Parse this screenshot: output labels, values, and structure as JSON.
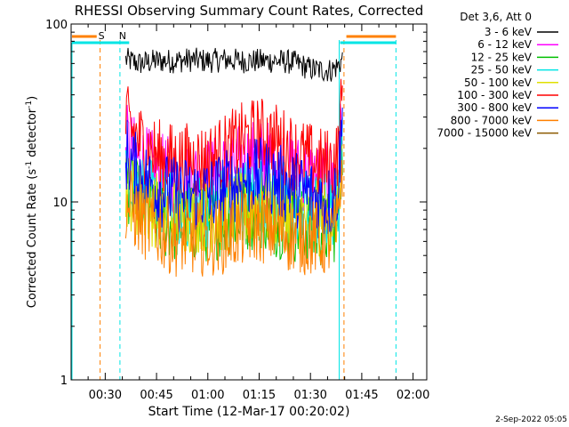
{
  "chart_data": {
    "type": "line",
    "title": "RHESSI Observing Summary Count Rates, Corrected",
    "xlabel": "Start Time (12-Mar-17 00:20:02)",
    "ylabel": "Corrected Count Rate (s⁻¹ detector⁻¹)",
    "ylabel_main": "Corrected Count Rate (s",
    "ylabel_sup1": "-1",
    "ylabel_mid": " detector",
    "ylabel_sup2": "-1",
    "ylabel_end": ")",
    "x_ticks": [
      "00:30",
      "00:45",
      "01:00",
      "01:15",
      "01:30",
      "01:45",
      "02:00"
    ],
    "x_tick_minutes": [
      30,
      45,
      60,
      75,
      90,
      105,
      120
    ],
    "xlim_minutes": [
      20.03,
      124
    ],
    "y_scale": "log",
    "ylim": [
      1,
      100
    ],
    "y_ticks": [
      "1",
      "10",
      "100"
    ],
    "y_tick_values": [
      1,
      10,
      100
    ],
    "legend_position": "top-right",
    "legend_title": "Det 3,6, Att 0",
    "series": [
      {
        "name": "3 - 6 keV",
        "color": "#000000",
        "points": [
          [
            36,
            63
          ],
          [
            40,
            60
          ],
          [
            45,
            62
          ],
          [
            50,
            62
          ],
          [
            55,
            63
          ],
          [
            60,
            62
          ],
          [
            65,
            63
          ],
          [
            70,
            62
          ],
          [
            75,
            62
          ],
          [
            80,
            62
          ],
          [
            85,
            61
          ],
          [
            90,
            56
          ],
          [
            93,
            55
          ],
          [
            96,
            55
          ],
          [
            98,
            58
          ],
          [
            99.5,
            64
          ]
        ]
      },
      {
        "name": "6 - 12 keV",
        "color": "#ff00ff",
        "points": [
          [
            36,
            22
          ],
          [
            38,
            19
          ],
          [
            40,
            17
          ],
          [
            45,
            15
          ],
          [
            50,
            14
          ],
          [
            55,
            14
          ],
          [
            60,
            14
          ],
          [
            65,
            15
          ],
          [
            70,
            17
          ],
          [
            75,
            18
          ],
          [
            80,
            17
          ],
          [
            85,
            15
          ],
          [
            90,
            14
          ],
          [
            93,
            13
          ],
          [
            96,
            13
          ],
          [
            98,
            15
          ],
          [
            99.5,
            32
          ]
        ]
      },
      {
        "name": "12 - 25 keV",
        "color": "#00c000",
        "points": [
          [
            36,
            13
          ],
          [
            40,
            10
          ],
          [
            45,
            8
          ],
          [
            50,
            7.5
          ],
          [
            55,
            7.5
          ],
          [
            60,
            7.5
          ],
          [
            65,
            8
          ],
          [
            70,
            8.5
          ],
          [
            75,
            9
          ],
          [
            80,
            8
          ],
          [
            85,
            7.5
          ],
          [
            90,
            7
          ],
          [
            93,
            7
          ],
          [
            96,
            7
          ],
          [
            98,
            8
          ],
          [
            99.5,
            22
          ]
        ]
      },
      {
        "name": "25 - 50 keV",
        "color": "#00e5e5",
        "points": [
          [
            36,
            15
          ],
          [
            40,
            12
          ],
          [
            45,
            10
          ],
          [
            50,
            9
          ],
          [
            55,
            9
          ],
          [
            60,
            9
          ],
          [
            65,
            10
          ],
          [
            70,
            11
          ],
          [
            75,
            11
          ],
          [
            80,
            11
          ],
          [
            85,
            10
          ],
          [
            90,
            9
          ],
          [
            93,
            9
          ],
          [
            96,
            9
          ],
          [
            98,
            10
          ],
          [
            99.5,
            24
          ]
        ]
      },
      {
        "name": "50 - 100 keV",
        "color": "#e0e000",
        "points": [
          [
            36,
            12
          ],
          [
            40,
            10
          ],
          [
            45,
            9
          ],
          [
            50,
            8.5
          ],
          [
            55,
            8.5
          ],
          [
            60,
            8.5
          ],
          [
            65,
            8.5
          ],
          [
            70,
            9
          ],
          [
            75,
            9.5
          ],
          [
            80,
            9
          ],
          [
            85,
            8.5
          ],
          [
            90,
            8
          ],
          [
            93,
            8
          ],
          [
            96,
            8
          ],
          [
            98,
            9
          ],
          [
            99.5,
            20
          ]
        ]
      },
      {
        "name": "100 - 300 keV",
        "color": "#ff0000",
        "points": [
          [
            36,
            28
          ],
          [
            38,
            25
          ],
          [
            40,
            22
          ],
          [
            45,
            18
          ],
          [
            50,
            17
          ],
          [
            55,
            17
          ],
          [
            60,
            17
          ],
          [
            65,
            19
          ],
          [
            70,
            22
          ],
          [
            75,
            24
          ],
          [
            80,
            22
          ],
          [
            85,
            19
          ],
          [
            90,
            17
          ],
          [
            93,
            16
          ],
          [
            96,
            16
          ],
          [
            98,
            18
          ],
          [
            99.5,
            40
          ]
        ]
      },
      {
        "name": "300 - 800 keV",
        "color": "#0000ff",
        "points": [
          [
            36,
            19
          ],
          [
            38,
            16
          ],
          [
            40,
            14
          ],
          [
            45,
            12
          ],
          [
            50,
            11
          ],
          [
            55,
            11
          ],
          [
            60,
            11
          ],
          [
            65,
            12
          ],
          [
            70,
            13
          ],
          [
            75,
            14
          ],
          [
            80,
            13
          ],
          [
            85,
            12
          ],
          [
            90,
            11
          ],
          [
            93,
            10
          ],
          [
            96,
            10
          ],
          [
            98,
            12
          ],
          [
            99.5,
            28
          ]
        ]
      },
      {
        "name": "800 - 7000 keV",
        "color": "#ff8000",
        "points": [
          [
            36,
            10
          ],
          [
            40,
            8
          ],
          [
            45,
            7
          ],
          [
            50,
            6.3
          ],
          [
            55,
            6.3
          ],
          [
            60,
            6.3
          ],
          [
            65,
            6.5
          ],
          [
            70,
            7
          ],
          [
            75,
            7.5
          ],
          [
            80,
            7
          ],
          [
            85,
            6.5
          ],
          [
            90,
            6.3
          ],
          [
            93,
            6.2
          ],
          [
            96,
            6.2
          ],
          [
            98,
            7
          ],
          [
            99.5,
            18
          ]
        ]
      },
      {
        "name": "7000 - 15000 keV",
        "color": "#8b5a00",
        "points": []
      }
    ],
    "annotations": [
      {
        "text": "S",
        "color": "#ff8000",
        "x_minutes": 28
      },
      {
        "text": "N",
        "color": "#00e5e5",
        "x_minutes": 34
      }
    ],
    "colors": {
      "attenuator": "#ff8000",
      "night": "#00e5e5"
    }
  },
  "footer": {
    "date": "2-Sep-2022 05:05"
  }
}
